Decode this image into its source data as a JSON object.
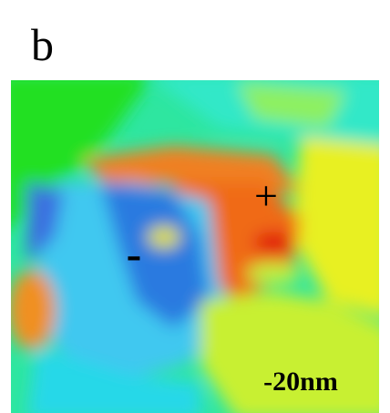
{
  "panel_label": "b",
  "annotations": {
    "plus": "+",
    "minus": "-",
    "scale": "-20nm"
  }
}
